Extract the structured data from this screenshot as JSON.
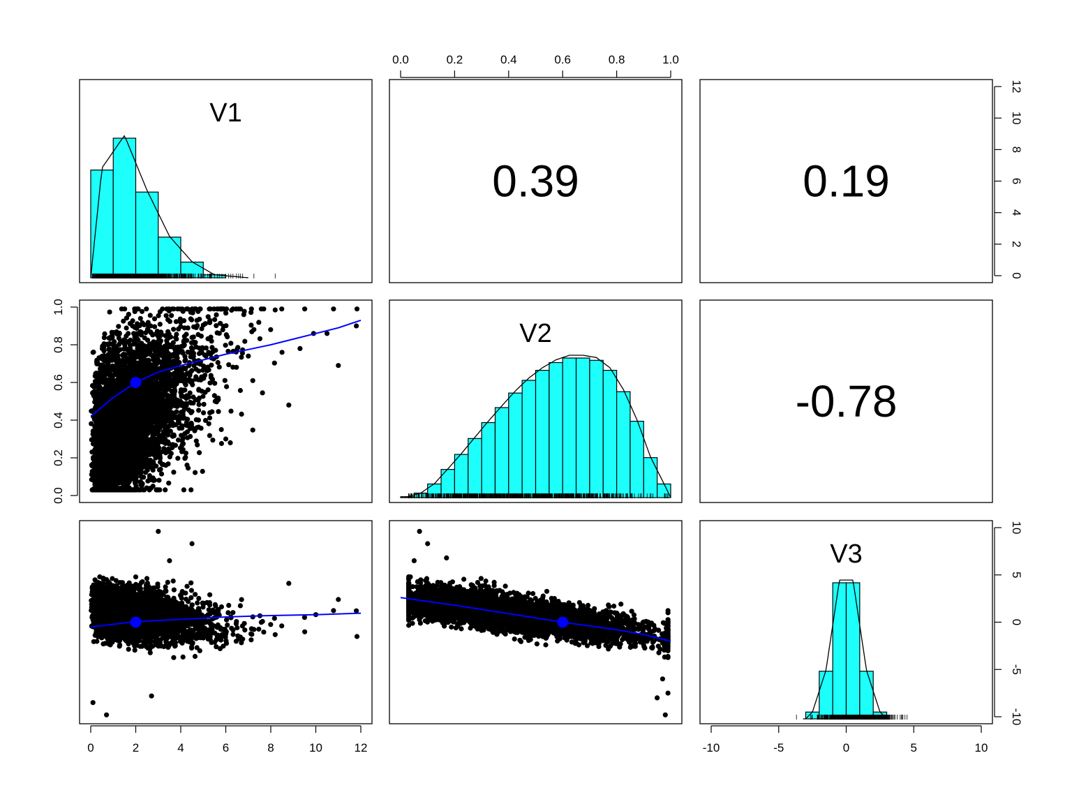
{
  "chart_data": {
    "type": "scatter",
    "layout": "pairs-panels 3x3",
    "variables": [
      "V1",
      "V2",
      "V3"
    ],
    "colors": {
      "hist_fill": "#1cfffb",
      "smooth_line": "#0000ff",
      "center_point": "#0000ff",
      "points": "#000000"
    },
    "axes": {
      "V1": {
        "range": [
          0,
          12
        ],
        "ticks": [
          "0",
          "2",
          "4",
          "6",
          "8",
          "10",
          "12"
        ]
      },
      "V2": {
        "range": [
          0,
          1
        ],
        "ticks": [
          "0.0",
          "0.2",
          "0.4",
          "0.6",
          "0.8",
          "1.0"
        ]
      },
      "V3": {
        "range": [
          -10,
          10
        ],
        "ticks": [
          "-10",
          "-5",
          "0",
          "5",
          "10"
        ]
      }
    },
    "correlations": [
      {
        "pair": [
          "V1",
          "V2"
        ],
        "value": "0.39"
      },
      {
        "pair": [
          "V1",
          "V3"
        ],
        "value": "0.19"
      },
      {
        "pair": [
          "V2",
          "V3"
        ],
        "value": "-0.78"
      }
    ],
    "histograms": {
      "V1": {
        "breaks": [
          0,
          1,
          2,
          3,
          4,
          5,
          6
        ],
        "density": [
          0.22,
          0.285,
          0.175,
          0.083,
          0.032,
          0.006
        ]
      },
      "V2": {
        "breaks": [
          0,
          0.05,
          0.1,
          0.15,
          0.2,
          0.25,
          0.3,
          0.35,
          0.4,
          0.45,
          0.5,
          0.55,
          0.6,
          0.65,
          0.7,
          0.75,
          0.8,
          0.85,
          0.9,
          0.95,
          1.0
        ],
        "density": [
          0.02,
          0.1,
          0.3,
          0.62,
          0.95,
          1.3,
          1.65,
          1.98,
          2.3,
          2.58,
          2.8,
          2.97,
          3.07,
          3.07,
          3.02,
          2.8,
          2.33,
          1.68,
          0.88,
          0.3
        ]
      },
      "V3": {
        "breaks": [
          -3,
          -2,
          -1,
          0,
          1,
          2,
          3
        ],
        "density": [
          0.02,
          0.14,
          0.4,
          0.4,
          0.14,
          0.02
        ]
      }
    },
    "smooth_fits": {
      "V2_vs_V1": {
        "x": [
          0,
          1,
          2,
          3,
          4,
          5,
          6,
          7,
          8,
          9,
          10,
          11,
          12
        ],
        "y": [
          0.42,
          0.52,
          0.6,
          0.655,
          0.69,
          0.72,
          0.75,
          0.775,
          0.8,
          0.83,
          0.86,
          0.89,
          0.93
        ]
      },
      "V3_vs_V1": {
        "x": [
          0,
          2,
          4,
          6,
          8,
          10,
          12
        ],
        "y": [
          -0.5,
          0.05,
          0.3,
          0.55,
          0.7,
          0.8,
          0.95
        ]
      },
      "V3_vs_V2": {
        "x": [
          0.0,
          0.2,
          0.4,
          0.6,
          0.8,
          0.9,
          1.0
        ],
        "y": [
          2.6,
          1.8,
          0.9,
          0.0,
          -0.8,
          -1.3,
          -2.0
        ]
      }
    },
    "centers": {
      "V2_vs_V1": {
        "x": 2.0,
        "y": 0.6
      },
      "V3_vs_V1": {
        "x": 2.0,
        "y": 0.0
      },
      "V3_vs_V2": {
        "x": 0.6,
        "y": 0.0
      }
    },
    "outlier_points": {
      "V2_vs_V1": [
        [
          11.8,
          0.9
        ],
        [
          11.0,
          0.69
        ],
        [
          10.5,
          0.86
        ],
        [
          9.9,
          0.86
        ],
        [
          9.3,
          0.78
        ],
        [
          8.8,
          0.48
        ],
        [
          8.5,
          0.76
        ],
        [
          7.2,
          0.61
        ],
        [
          6.2,
          0.28
        ],
        [
          7.0,
          0.74
        ],
        [
          6.8,
          0.96
        ],
        [
          5.8,
          0.35
        ],
        [
          6.0,
          0.3
        ]
      ],
      "V3_vs_V1": [
        [
          11.8,
          1.2
        ],
        [
          11.0,
          2.4
        ],
        [
          8.8,
          4.1
        ],
        [
          10.0,
          0.8
        ],
        [
          9.5,
          0.5
        ],
        [
          3.0,
          9.6
        ],
        [
          4.5,
          8.3
        ],
        [
          3.5,
          6.5
        ],
        [
          2.7,
          -7.8
        ],
        [
          0.7,
          -9.8
        ],
        [
          0.1,
          -8.5
        ],
        [
          0.4,
          4.8
        ]
      ],
      "V3_vs_V2": [
        [
          0.07,
          9.6
        ],
        [
          0.1,
          8.3
        ],
        [
          0.05,
          6.5
        ],
        [
          0.17,
          6.8
        ],
        [
          0.98,
          -9.8
        ],
        [
          0.95,
          -8.0
        ],
        [
          0.99,
          -7.5
        ],
        [
          0.97,
          -6.0
        ],
        [
          0.03,
          4.8
        ]
      ]
    }
  }
}
